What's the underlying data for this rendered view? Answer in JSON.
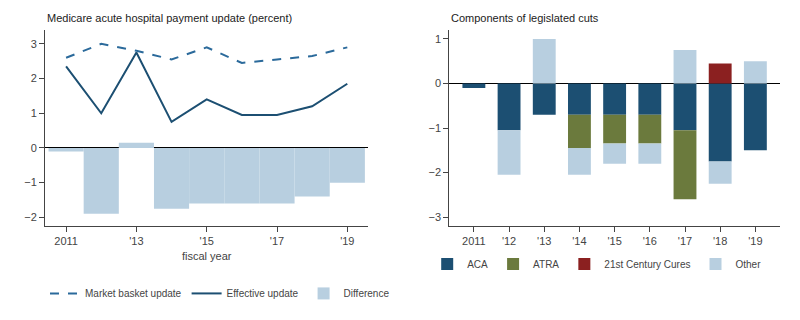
{
  "chart_data": [
    {
      "type": "bar",
      "title": "Medicare acute hospital payment update (percent)",
      "xlabel": "fiscal year",
      "x": [
        2011,
        2012,
        2013,
        2014,
        2015,
        2016,
        2017,
        2018,
        2019
      ],
      "series": [
        {
          "name": "Market basket update",
          "type": "line",
          "line_style": "dashed",
          "color": "#2b6a9b",
          "values": [
            2.6,
            3.0,
            2.8,
            2.55,
            2.9,
            2.45,
            2.55,
            2.65,
            2.9
          ]
        },
        {
          "name": "Effective update",
          "type": "line",
          "line_style": "solid",
          "color": "#1c4f72",
          "values": [
            2.35,
            1.0,
            2.75,
            0.75,
            1.4,
            0.95,
            0.95,
            1.2,
            1.85
          ]
        },
        {
          "name": "Difference",
          "type": "bar",
          "color": "#b8cfe0",
          "values": [
            -0.1,
            -1.9,
            0.15,
            -1.75,
            -1.6,
            -1.6,
            -1.6,
            -1.4,
            -1.0
          ]
        }
      ],
      "xlim": [
        2010.4,
        2019.6
      ],
      "xticks": [
        2011,
        {
          "value": 2013,
          "label": "'13"
        },
        {
          "value": 2015,
          "label": "'15"
        },
        {
          "value": 2017,
          "label": "'17"
        },
        {
          "value": 2019,
          "label": "'19"
        }
      ],
      "ylim": [
        -2.25,
        3.4
      ],
      "yticks": [
        {
          "value": -2,
          "label": "−2"
        },
        {
          "value": -1,
          "label": "−1"
        },
        0,
        1,
        2,
        3
      ],
      "grid": false,
      "legend": "bottom"
    },
    {
      "type": "bar",
      "stacked": true,
      "title": "Components of legislated cuts",
      "x": [
        2011,
        2012,
        2013,
        2014,
        2015,
        2016,
        2017,
        2018,
        2019
      ],
      "series": [
        {
          "name": "ACA",
          "color": "#1c4f72",
          "values": [
            -0.1,
            -1.05,
            -0.7,
            -0.7,
            -0.7,
            -0.7,
            -1.05,
            -1.75,
            -1.5
          ]
        },
        {
          "name": "ATRA",
          "color": "#6b7a3d",
          "values": [
            0.0,
            0.0,
            0.0,
            -0.75,
            -0.65,
            -0.65,
            -1.55,
            0.0,
            0.0
          ]
        },
        {
          "name": "21st Century Cures",
          "color": "#8b2020",
          "values": [
            0.0,
            0.0,
            0.0,
            0.0,
            0.0,
            0.0,
            0.0,
            0.45,
            0.0
          ]
        },
        {
          "name": "Other",
          "color": "#b8cfe0",
          "values": [
            0.0,
            -1.0,
            1.0,
            -0.6,
            -0.45,
            -0.45,
            0.75,
            -0.5,
            0.5
          ]
        }
      ],
      "xlim": [
        2010.3,
        2019.7
      ],
      "xticks": [
        2011,
        {
          "value": 2012,
          "label": "'12"
        },
        {
          "value": 2013,
          "label": "'13"
        },
        {
          "value": 2014,
          "label": "'14"
        },
        {
          "value": 2015,
          "label": "'15"
        },
        {
          "value": 2016,
          "label": "'16"
        },
        {
          "value": 2017,
          "label": "'17"
        },
        {
          "value": 2018,
          "label": "'18"
        },
        {
          "value": 2019,
          "label": "'19"
        }
      ],
      "ylim": [
        -3.2,
        1.2
      ],
      "yticks": [
        {
          "value": -3,
          "label": "−3"
        },
        {
          "value": -2,
          "label": "−2"
        },
        {
          "value": -1,
          "label": "−1"
        },
        0,
        1
      ],
      "grid": false,
      "legend": "bottom"
    }
  ]
}
